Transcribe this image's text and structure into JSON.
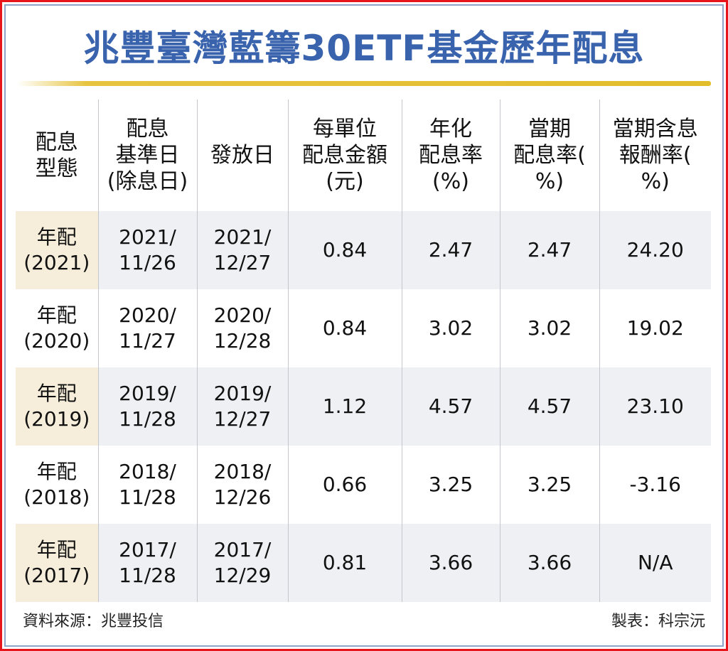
{
  "title": "兆豐臺灣藍籌30ETF基金歷年配息",
  "chart_data": {
    "type": "table",
    "title": "兆豐臺灣藍籌30ETF基金歷年配息",
    "columns": [
      [
        "配息",
        "型態"
      ],
      [
        "配息",
        "基準日",
        "(除息日)"
      ],
      [
        "發放日"
      ],
      [
        "每單位",
        "配息金額",
        "(元)"
      ],
      [
        "年化",
        "配息率",
        "(%)"
      ],
      [
        "當期",
        "配息率(",
        "%)"
      ],
      [
        "當期含息",
        "報酬率(",
        "%)"
      ]
    ],
    "rows": [
      {
        "type": [
          "年配",
          "(2021)"
        ],
        "ex_date": [
          "2021/",
          "11/26"
        ],
        "pay_date": [
          "2021/",
          "12/27"
        ],
        "amount": "0.84",
        "annual_yield": "2.47",
        "period_yield": "2.47",
        "total_return": "24.20"
      },
      {
        "type": [
          "年配",
          "(2020)"
        ],
        "ex_date": [
          "2020/",
          "11/27"
        ],
        "pay_date": [
          "2020/",
          "12/28"
        ],
        "amount": "0.84",
        "annual_yield": "3.02",
        "period_yield": "3.02",
        "total_return": "19.02"
      },
      {
        "type": [
          "年配",
          "(2019)"
        ],
        "ex_date": [
          "2019/",
          "11/28"
        ],
        "pay_date": [
          "2019/",
          "12/27"
        ],
        "amount": "1.12",
        "annual_yield": "4.57",
        "period_yield": "4.57",
        "total_return": "23.10"
      },
      {
        "type": [
          "年配",
          "(2018)"
        ],
        "ex_date": [
          "2018/",
          "11/28"
        ],
        "pay_date": [
          "2018/",
          "12/26"
        ],
        "amount": "0.66",
        "annual_yield": "3.25",
        "period_yield": "3.25",
        "total_return": "-3.16"
      },
      {
        "type": [
          "年配",
          "(2017)"
        ],
        "ex_date": [
          "2017/",
          "11/28"
        ],
        "pay_date": [
          "2017/",
          "12/29"
        ],
        "amount": "0.81",
        "annual_yield": "3.66",
        "period_yield": "3.66",
        "total_return": "N/A"
      }
    ]
  },
  "footer": {
    "source": "資料來源：兆豐投信",
    "credit": "製表：科宗沅"
  },
  "colors": {
    "title": "#3a63ad",
    "border": "#e8141c",
    "shade": "#eef0f4",
    "shade_first": "#f6eedb"
  }
}
